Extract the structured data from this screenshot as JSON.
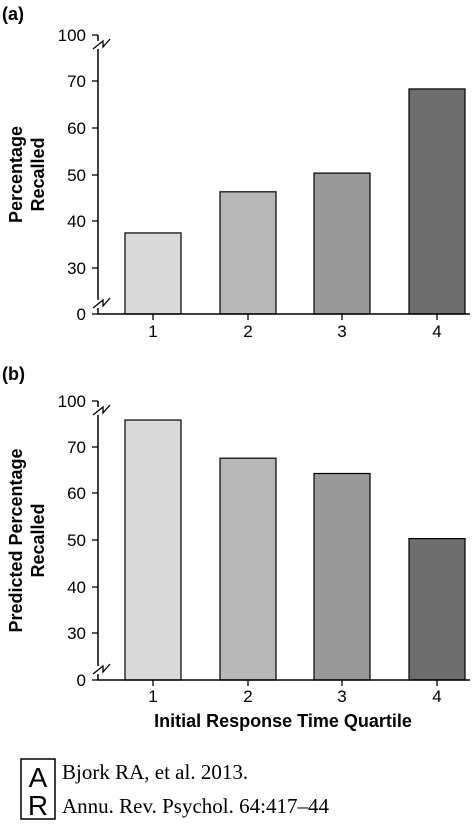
{
  "chart_data": [
    {
      "panel_label": "(a)",
      "type": "bar",
      "categories": [
        "1",
        "2",
        "3",
        "4"
      ],
      "values": [
        37.5,
        46.3,
        50.3,
        68.3
      ],
      "ylabel": [
        "Percentage",
        "Recalled"
      ],
      "xlabel": "",
      "yticks": [
        "0",
        "30",
        "40",
        "50",
        "60",
        "70",
        "100"
      ],
      "ylim": [
        30,
        70
      ],
      "axis_break": true,
      "bar_colors": [
        "#d9d9d9",
        "#b8b8b8",
        "#999999",
        "#6e6e6e"
      ]
    },
    {
      "panel_label": "(b)",
      "type": "bar",
      "categories": [
        "1",
        "2",
        "3",
        "4"
      ],
      "values": [
        75.8,
        67.6,
        64.3,
        50.3
      ],
      "ylabel": [
        "Predicted Percentage",
        "Recalled"
      ],
      "xlabel": "Initial Response Time Quartile",
      "yticks": [
        "0",
        "30",
        "40",
        "50",
        "60",
        "70",
        "100"
      ],
      "ylim": [
        30,
        70
      ],
      "axis_break": true,
      "bar_colors": [
        "#d9d9d9",
        "#b8b8b8",
        "#999999",
        "#6e6e6e"
      ]
    }
  ],
  "citation": {
    "logo_letters": "AR",
    "line1": "Bjork RA, et al. 2013.",
    "line2": "Annu. Rev. Psychol. 64:417–44"
  }
}
